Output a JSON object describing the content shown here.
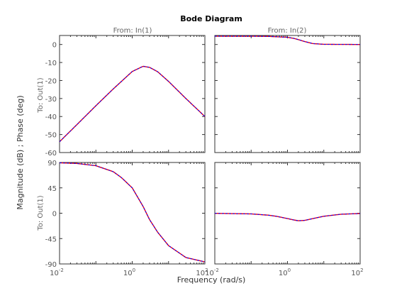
{
  "chart_data": {
    "type": "line",
    "title": "Bode Diagram",
    "xlabel": "Frequency  (rad/s)",
    "ylabel": "Magnitude (dB) ; Phase (deg)",
    "x_scale": "log",
    "xlim": [
      0.01,
      100
    ],
    "x_ticks": [
      0.01,
      1,
      100
    ],
    "x_tick_labels": [
      [
        "10",
        "-2"
      ],
      [
        "10",
        "0"
      ],
      [
        "10",
        "2"
      ]
    ],
    "column_labels": [
      "From: In(1)",
      "From: In(2)"
    ],
    "row_labels": [
      "To: Out(1)",
      "To: Out(1)"
    ],
    "magnitude_ylim": [
      -60,
      5
    ],
    "magnitude_ticks": [
      -60,
      -50,
      -40,
      -30,
      -20,
      -10,
      0
    ],
    "phase_ylim": [
      -90,
      90
    ],
    "phase_ticks": [
      -90,
      -45,
      0,
      45,
      90
    ],
    "grid": false,
    "series_colors": [
      "#ff0000",
      "#0000ff"
    ],
    "series": [
      {
        "panel": "magnitude-in1",
        "x": [
          0.01,
          0.03,
          0.1,
          0.3,
          1,
          2,
          3,
          5,
          10,
          30,
          100
        ],
        "y": [
          -54,
          -44.5,
          -34,
          -24.7,
          -15,
          -12.1,
          -12.7,
          -15.1,
          -20.5,
          -30,
          -40
        ]
      },
      {
        "panel": "magnitude-in2",
        "x": [
          0.01,
          0.1,
          0.3,
          1,
          1.5,
          2,
          3,
          5,
          10,
          100
        ],
        "y": [
          4.6,
          4.6,
          4.5,
          4.0,
          3.4,
          2.7,
          1.6,
          0.5,
          0.1,
          0
        ]
      },
      {
        "panel": "phase-in1",
        "x": [
          0.01,
          0.03,
          0.1,
          0.3,
          0.5,
          1,
          2,
          3,
          5,
          10,
          30,
          100
        ],
        "y": [
          89.4,
          88.3,
          84.3,
          73.7,
          63.4,
          45,
          11.9,
          -11.3,
          -33.6,
          -57.5,
          -78.6,
          -86.4
        ]
      },
      {
        "panel": "phase-in2",
        "x": [
          0.01,
          0.1,
          0.3,
          0.5,
          1,
          1.5,
          2,
          3,
          5,
          10,
          30,
          100
        ],
        "y": [
          -0.2,
          -1.2,
          -3.5,
          -5.5,
          -9.5,
          -12.0,
          -13.4,
          -12.7,
          -9.5,
          -5.4,
          -1.8,
          -0.5
        ]
      }
    ]
  }
}
